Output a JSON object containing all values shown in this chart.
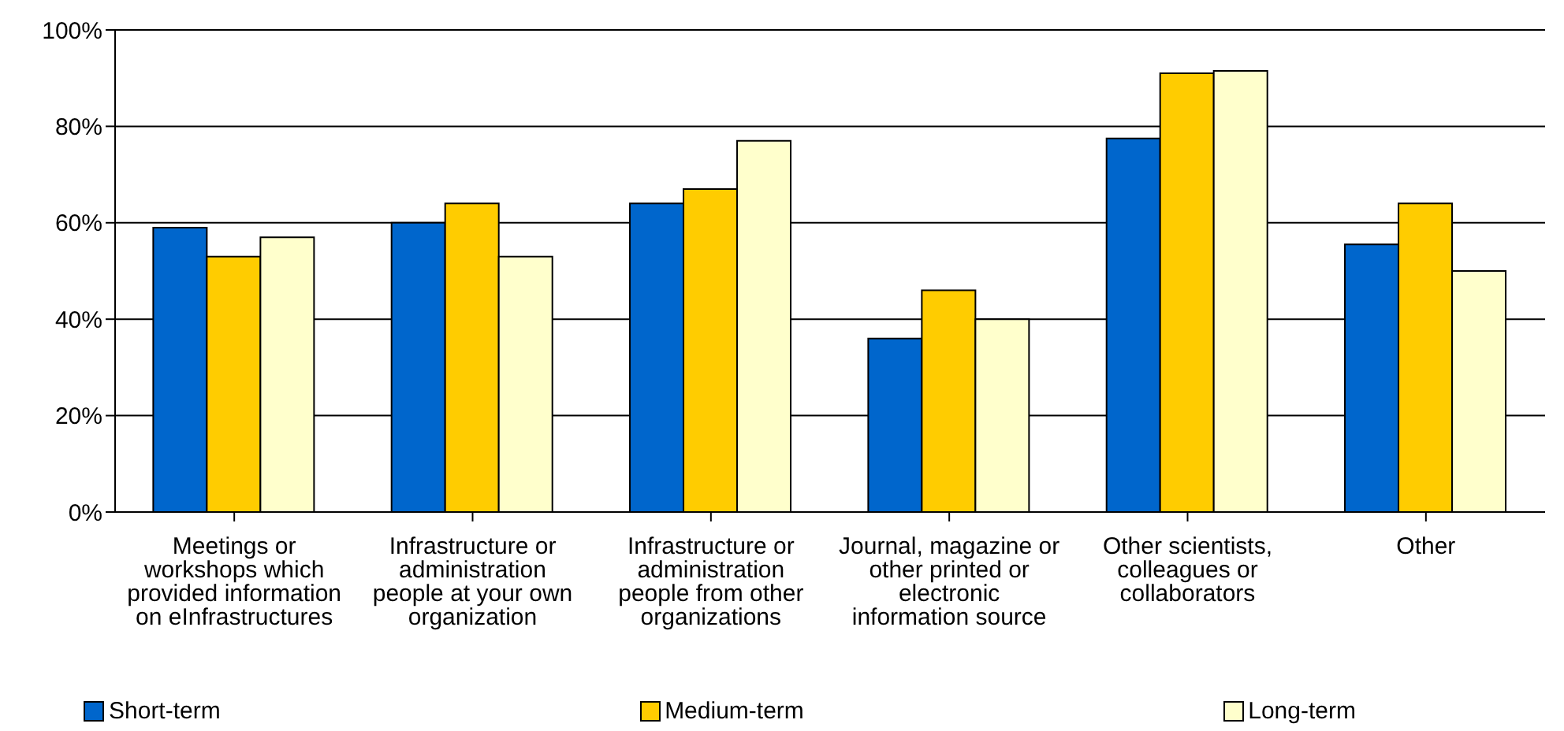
{
  "chart_data": {
    "type": "bar",
    "categories": [
      "Meetings or workshops which provided information on eInfrastructures",
      "Infrastructure or administration people at your own organization",
      "Infrastructure or administration people from other organizations",
      "Journal, magazine or other printed or electronic information source",
      "Other scientists, colleagues or collaborators",
      "Other"
    ],
    "series": [
      {
        "name": "Short-term",
        "color": "#0066cc",
        "values": [
          59,
          60,
          64,
          36,
          77.5,
          55.5
        ]
      },
      {
        "name": "Medium-term",
        "color": "#ffcc00",
        "values": [
          53,
          64,
          67,
          46,
          91,
          64
        ]
      },
      {
        "name": "Long-term",
        "color": "#ffffcc",
        "values": [
          57,
          53,
          77,
          40,
          91.5,
          50
        ]
      }
    ],
    "ylim": [
      0,
      100
    ],
    "yticks": [
      {
        "value": 0,
        "label": "0%"
      },
      {
        "value": 20,
        "label": "20%"
      },
      {
        "value": 40,
        "label": "40%"
      },
      {
        "value": 60,
        "label": "60%"
      },
      {
        "value": 80,
        "label": "80%"
      },
      {
        "value": 100,
        "label": "100%"
      }
    ],
    "grid": "y",
    "legend": "bottom"
  }
}
